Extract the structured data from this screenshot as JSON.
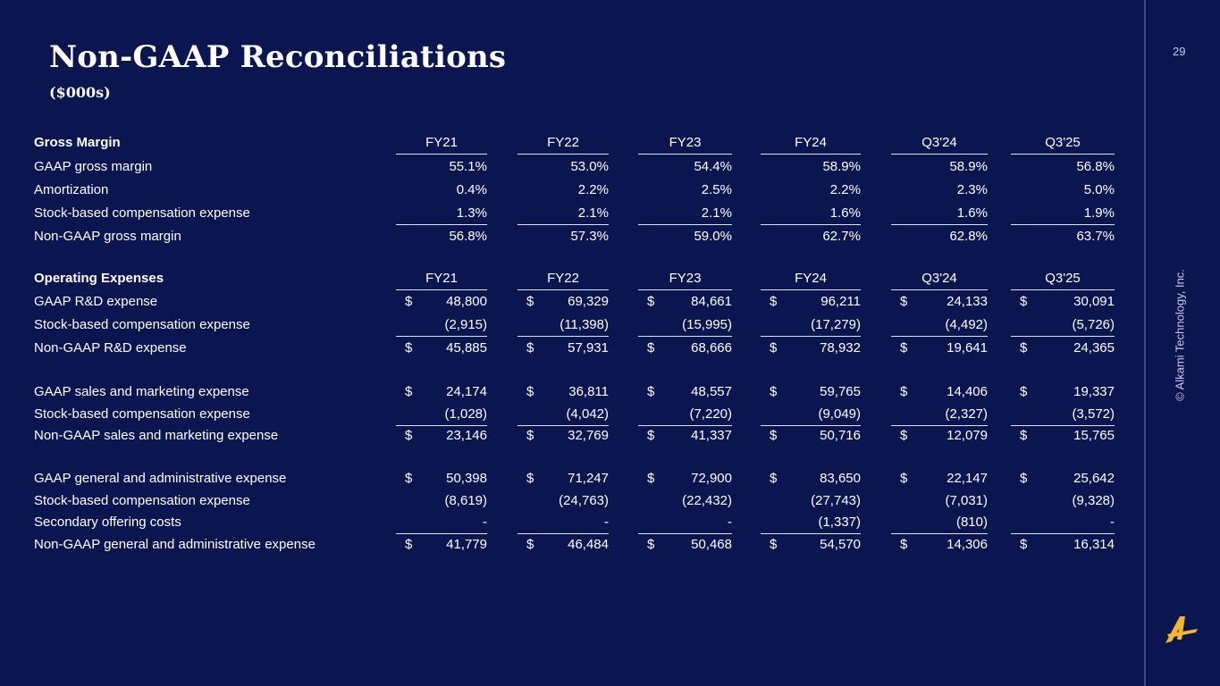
{
  "header": {
    "title": "Non-GAAP Reconciliations",
    "subtitle": "($000s)",
    "page_number": "29"
  },
  "footer": {
    "copyright": "© Alkami Technology, Inc.",
    "logo": "Alkami A logo"
  },
  "colors": {
    "background": "#0b1550",
    "logo": "#f2b630",
    "text": "#ffffff"
  },
  "table": {
    "columns": [
      "FY21",
      "FY22",
      "FY23",
      "FY24",
      "Q3'24",
      "Q3'25"
    ],
    "rows": [
      {
        "label": "Gross Margin",
        "header": true,
        "values": [
          "FY21",
          "FY22",
          "FY23",
          "FY24",
          "Q3'24",
          "Q3'25"
        ],
        "line_below": true
      },
      {
        "label": "GAAP gross margin",
        "values": [
          "55.1%",
          "53.0%",
          "54.4%",
          "58.9%",
          "58.9%",
          "56.8%"
        ]
      },
      {
        "label": "Amortization",
        "values": [
          "0.4%",
          "2.2%",
          "2.5%",
          "2.2%",
          "2.3%",
          "5.0%"
        ]
      },
      {
        "label": "Stock-based compensation expense",
        "values": [
          "1.3%",
          "2.1%",
          "2.1%",
          "1.6%",
          "1.6%",
          "1.9%"
        ],
        "line_below": true
      },
      {
        "label": "Non-GAAP gross margin",
        "values": [
          "56.8%",
          "57.3%",
          "59.0%",
          "62.7%",
          "62.8%",
          "63.7%"
        ]
      },
      {
        "label": "Operating Expenses",
        "header": true,
        "values": [
          "FY21",
          "FY22",
          "FY23",
          "FY24",
          "Q3'24",
          "Q3'25"
        ],
        "line_below": true
      },
      {
        "label": "GAAP R&D expense",
        "dollar": "$",
        "values": [
          "48,800",
          "69,329",
          "84,661",
          "96,211",
          "24,133",
          "30,091"
        ]
      },
      {
        "label": "Stock-based compensation expense",
        "values": [
          "(2,915)",
          "(11,398)",
          "(15,995)",
          "(17,279)",
          "(4,492)",
          "(5,726)"
        ],
        "line_below": true
      },
      {
        "label": "Non-GAAP R&D expense",
        "dollar": "$",
        "values": [
          "45,885",
          "57,931",
          "68,666",
          "78,932",
          "19,641",
          "24,365"
        ]
      },
      {
        "label": "GAAP sales and marketing expense",
        "dollar": "$",
        "values": [
          "24,174",
          "36,811",
          "48,557",
          "59,765",
          "14,406",
          "19,337"
        ]
      },
      {
        "label": "Stock-based compensation expense",
        "values": [
          "(1,028)",
          "(4,042)",
          "(7,220)",
          "(9,049)",
          "(2,327)",
          "(3,572)"
        ],
        "line_below": true
      },
      {
        "label": "Non-GAAP sales and marketing expense",
        "dollar": "$",
        "values": [
          "23,146",
          "32,769",
          "41,337",
          "50,716",
          "12,079",
          "15,765"
        ]
      },
      {
        "label": "GAAP general and administrative expense",
        "dollar": "$",
        "values": [
          "50,398",
          "71,247",
          "72,900",
          "83,650",
          "22,147",
          "25,642"
        ]
      },
      {
        "label": "Stock-based compensation expense",
        "values": [
          "(8,619)",
          "(24,763)",
          "(22,432)",
          "(27,743)",
          "(7,031)",
          "(9,328)"
        ]
      },
      {
        "label": "Secondary offering costs",
        "values": [
          "-",
          "-",
          "-",
          "(1,337)",
          "(810)",
          "-"
        ],
        "line_below": true
      },
      {
        "label": "Non-GAAP general and administrative expense",
        "dollar": "$",
        "values": [
          "41,779",
          "46,484",
          "50,468",
          "54,570",
          "14,306",
          "16,314"
        ]
      }
    ]
  }
}
